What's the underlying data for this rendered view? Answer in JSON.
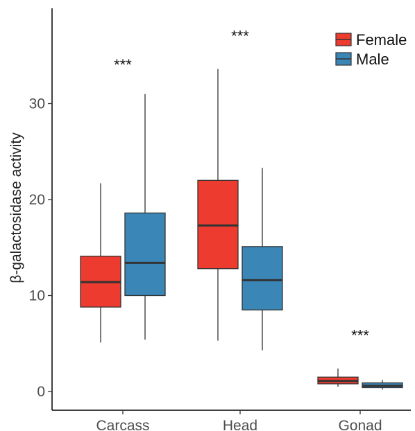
{
  "chart_data": {
    "type": "box",
    "title": "",
    "xlabel": "",
    "ylabel": "β-galactosidase activity",
    "ylim": [
      -2,
      40
    ],
    "yticks": [
      0,
      10,
      20,
      30
    ],
    "categories": [
      "Carcass",
      "Head",
      "Gonad"
    ],
    "grid": false,
    "legend_position": "top-right",
    "series": [
      {
        "name": "Female",
        "color": "#ee3b2f",
        "boxes": [
          {
            "min": 5.1,
            "q1": 8.8,
            "median": 11.4,
            "q3": 14.1,
            "max": 21.7
          },
          {
            "min": 5.3,
            "q1": 12.8,
            "median": 17.3,
            "q3": 22.0,
            "max": 33.6
          },
          {
            "min": 0.5,
            "q1": 0.8,
            "median": 1.1,
            "q3": 1.5,
            "max": 2.4
          }
        ]
      },
      {
        "name": "Male",
        "color": "#3a87b7",
        "boxes": [
          {
            "min": 5.4,
            "q1": 10.0,
            "median": 13.4,
            "q3": 18.6,
            "max": 31.0
          },
          {
            "min": 4.3,
            "q1": 8.5,
            "median": 11.6,
            "q3": 15.1,
            "max": 23.3
          },
          {
            "min": 0.2,
            "q1": 0.4,
            "median": 0.6,
            "q3": 0.9,
            "max": 1.2
          }
        ]
      }
    ],
    "annotations": [
      {
        "category": "Carcass",
        "text": "***",
        "y": 33.5
      },
      {
        "category": "Head",
        "text": "***",
        "y": 36.5
      },
      {
        "category": "Gonad",
        "text": "***",
        "y": 5.3
      }
    ]
  }
}
